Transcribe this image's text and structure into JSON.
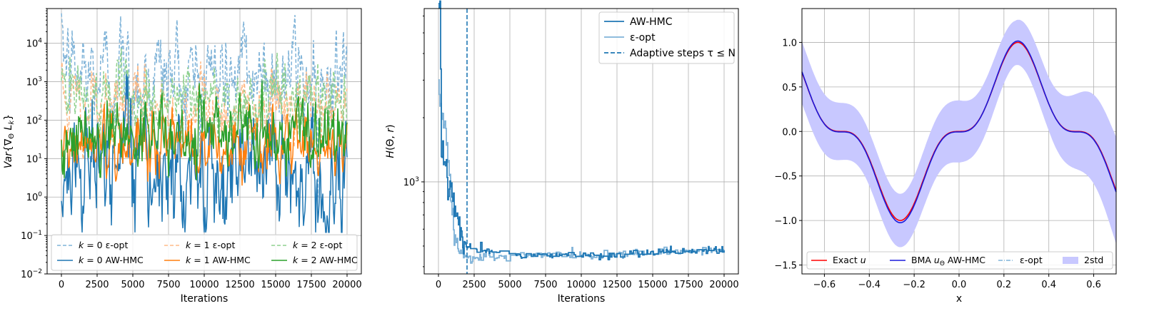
{
  "colors": {
    "c0": "#1f77b4",
    "c1": "#ff7f0e",
    "c2": "#2ca02c",
    "c0_light": "#7fb3d8",
    "c1_light": "#ffbb88",
    "c2_light": "#8fd18f",
    "exact": "#ff0000",
    "bma": "#1a1adc",
    "band": "#c8c8ff"
  },
  "chart_data": [
    {
      "type": "line",
      "ylabel": "Var{∇Θ L_k}",
      "xlabel": "Iterations",
      "yscale": "log",
      "xlim": [
        -1000,
        21000
      ],
      "ylim": [
        0.01,
        80000
      ],
      "xticks": [
        0,
        2500,
        5000,
        7500,
        10000,
        12500,
        15000,
        17500,
        20000
      ],
      "xtick_labels": [
        "0",
        "2500",
        "5000",
        "7500",
        "10000",
        "12500",
        "15000",
        "17500",
        "20000"
      ],
      "ytick_labels": [
        {
          "base": "10",
          "exp": "−2",
          "value": 0.01
        },
        {
          "base": "10",
          "exp": "−1",
          "value": 0.1
        },
        {
          "base": "10",
          "exp": "0",
          "value": 1
        },
        {
          "base": "10",
          "exp": "1",
          "value": 10
        },
        {
          "base": "10",
          "exp": "2",
          "value": 100
        },
        {
          "base": "10",
          "exp": "3",
          "value": 1000
        },
        {
          "base": "10",
          "exp": "4",
          "value": 10000
        }
      ],
      "grid": true,
      "legend_position": "lower center",
      "series": [
        {
          "name": "k = 0 ε-opt",
          "style": "dashed",
          "color_key": "c0_light",
          "level": 1500,
          "spread": 0.55
        },
        {
          "name": "k = 0 AW-HMC",
          "style": "solid",
          "color_key": "c0",
          "level": 6,
          "spread": 0.6
        },
        {
          "name": "k = 1 ε-opt",
          "style": "dashed",
          "color_key": "c1_light",
          "level": 200,
          "spread": 0.35
        },
        {
          "name": "k = 1 AW-HMC",
          "style": "solid",
          "color_key": "c1",
          "level": 25,
          "spread": 0.35
        },
        {
          "name": "k = 2 ε-opt",
          "style": "dashed",
          "color_key": "c2_light",
          "level": 350,
          "spread": 0.35
        },
        {
          "name": "k = 2 AW-HMC",
          "style": "solid",
          "color_key": "c2",
          "level": 40,
          "spread": 0.4
        }
      ],
      "legend_entries": [
        {
          "math": "k",
          "rest": " = 0 ε-opt"
        },
        {
          "math": "k",
          "rest": " = 1 ε-opt"
        },
        {
          "math": "k",
          "rest": " = 2 ε-opt"
        },
        {
          "math": "k",
          "rest": " = 0 AW-HMC"
        },
        {
          "math": "k",
          "rest": " = 1 AW-HMC"
        },
        {
          "math": "k",
          "rest": " = 2 AW-HMC"
        }
      ]
    },
    {
      "type": "line",
      "ylabel": "H(Θ, r)",
      "xlabel": "Iterations",
      "yscale": "log",
      "xlim": [
        -1000,
        21000
      ],
      "ylim": [
        370,
        6500
      ],
      "xticks": [
        0,
        2500,
        5000,
        7500,
        10000,
        12500,
        15000,
        17500,
        20000
      ],
      "xtick_labels": [
        "0",
        "2500",
        "5000",
        "7500",
        "10000",
        "12500",
        "15000",
        "17500",
        "20000"
      ],
      "ytick_labels": [
        {
          "base": "10",
          "exp": "3",
          "value": 1000
        }
      ],
      "grid": true,
      "legend_position": "upper right",
      "vline_x": 2000,
      "series": [
        {
          "name": "AW-HMC",
          "style": "solid",
          "color_key": "c0",
          "x": [
            0,
            100,
            200,
            300,
            400,
            500,
            600,
            700,
            800,
            1000,
            1200,
            1400,
            1600,
            1800,
            2000,
            2500,
            3000,
            4000,
            5000,
            6000,
            7000,
            8000,
            9000,
            10000,
            11000,
            12000,
            13000,
            14000,
            15000,
            16000,
            17000,
            18000,
            19000,
            20000
          ],
          "y": [
            6000,
            5900,
            1500,
            1300,
            1200,
            1250,
            1100,
            1000,
            1100,
            820,
            700,
            680,
            560,
            520,
            500,
            490,
            480,
            470,
            445,
            450,
            455,
            450,
            455,
            455,
            450,
            450,
            455,
            460,
            465,
            470,
            470,
            475,
            480,
            485
          ]
        },
        {
          "name": "ε-opt",
          "style": "solid",
          "color_key": "c0_light",
          "x": [
            0,
            100,
            300,
            500,
            700,
            900,
            1100,
            1300,
            1500,
            1800,
            2000,
            2500,
            3000,
            4000,
            5000,
            6000,
            7000,
            8000,
            9000,
            10000,
            11000,
            12000,
            13000,
            14000,
            15000,
            16000,
            17000,
            18000,
            19000,
            20000
          ],
          "y": [
            2800,
            2500,
            2000,
            1700,
            1200,
            800,
            560,
            500,
            470,
            460,
            440,
            435,
            435,
            440,
            445,
            450,
            455,
            455,
            455,
            455,
            450,
            455,
            460,
            460,
            465,
            465,
            470,
            475,
            480,
            485
          ]
        }
      ],
      "legend_entries": [
        {
          "text": "AW-HMC"
        },
        {
          "text": "ε-opt"
        },
        {
          "text": "Adaptive steps τ ≤ N"
        }
      ]
    },
    {
      "type": "line",
      "xlabel": "x",
      "ylabel": "",
      "xlim": [
        -0.7,
        0.7
      ],
      "ylim": [
        -1.6,
        1.38
      ],
      "xticks": [
        -0.6,
        -0.4,
        -0.2,
        0.0,
        0.2,
        0.4,
        0.6
      ],
      "xtick_labels": [
        "−0.6",
        "−0.4",
        "−0.2",
        "0.0",
        "0.2",
        "0.4",
        "0.6"
      ],
      "yticks": [
        -1.5,
        -1.0,
        -0.5,
        0.0,
        0.5,
        1.0
      ],
      "ytick_labels": [
        "−1.5",
        "−1.0",
        "−0.5",
        "0.0",
        "0.5",
        "1.0"
      ],
      "grid": true,
      "legend_position": "lower center",
      "function": "u(x) = sin^3(6x)",
      "band_halfwidth": {
        "x": [
          -0.7,
          -0.4,
          -0.25,
          0.0,
          0.25,
          0.4,
          0.7
        ],
        "w": [
          0.35,
          0.3,
          0.3,
          0.35,
          0.25,
          0.3,
          0.6
        ]
      },
      "series": [
        {
          "name": "Exact u",
          "style": "solid",
          "color_key": "exact"
        },
        {
          "name": "BMA uΘ AW-HMC",
          "style": "solid",
          "color_key": "bma"
        },
        {
          "name": "ε-opt",
          "style": "dashdot",
          "color_key": "c0_light"
        },
        {
          "name": "2std",
          "style": "fill",
          "color_key": "band"
        }
      ],
      "legend_entries": [
        {
          "text": "Exact ",
          "math": "u"
        },
        {
          "text": "BMA ",
          "math": "u",
          "sub": "Θ",
          "rest": " AW-HMC"
        },
        {
          "text": "ε-opt"
        },
        {
          "text": "2std"
        }
      ]
    }
  ]
}
